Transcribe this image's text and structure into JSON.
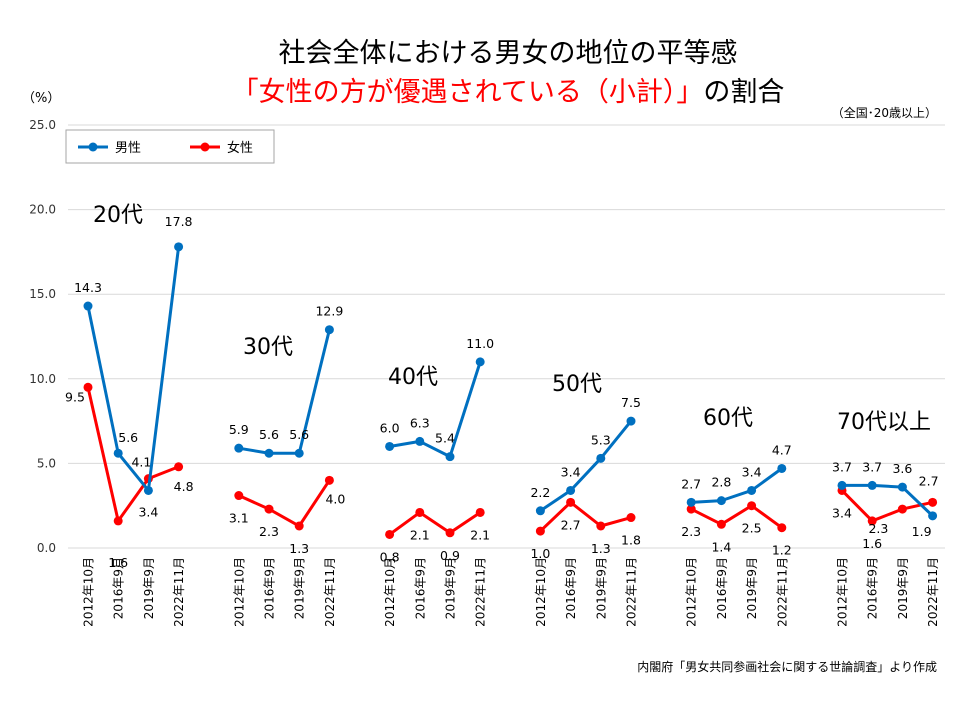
{
  "title": {
    "line1": "社会全体における男女の地位の平等感",
    "line2_highlight": "「女性の方が優遇されている（小計）」",
    "line2_rest": "の割合"
  },
  "note_scope": "（全国･20歳以上）",
  "source": "内閣府「男女共同参画社会に関する世論調査」より作成",
  "colors": {
    "male": "#0070C0",
    "female": "#FF0000",
    "title_highlight": "#FF0000"
  },
  "chart_data": {
    "type": "line",
    "y_unit": "（%）",
    "ylim": [
      0,
      25
    ],
    "y_ticks": [
      0,
      5,
      10,
      15,
      20,
      25
    ],
    "grid": true,
    "legend_position": "top-left",
    "categories": [
      "2012年10月",
      "2016年9月",
      "2019年9月",
      "2022年11月"
    ],
    "series_styles": [
      {
        "name": "男性",
        "color": "#0070C0"
      },
      {
        "name": "女性",
        "color": "#FF0000"
      }
    ],
    "groups": [
      {
        "label": "20代",
        "series": [
          {
            "name": "男性",
            "values": [
              14.3,
              5.6,
              3.4,
              17.8
            ]
          },
          {
            "name": "女性",
            "values": [
              9.5,
              1.6,
              4.1,
              4.8
            ]
          }
        ]
      },
      {
        "label": "30代",
        "series": [
          {
            "name": "男性",
            "values": [
              5.9,
              5.6,
              5.6,
              12.9
            ]
          },
          {
            "name": "女性",
            "values": [
              3.1,
              2.3,
              1.3,
              4.0
            ]
          }
        ]
      },
      {
        "label": "40代",
        "series": [
          {
            "name": "男性",
            "values": [
              6.0,
              6.3,
              5.4,
              11.0
            ]
          },
          {
            "name": "女性",
            "values": [
              0.8,
              2.1,
              0.9,
              2.1
            ]
          }
        ]
      },
      {
        "label": "50代",
        "series": [
          {
            "name": "男性",
            "values": [
              2.2,
              3.4,
              5.3,
              7.5
            ]
          },
          {
            "name": "女性",
            "values": [
              1.0,
              2.7,
              1.3,
              1.8
            ]
          }
        ]
      },
      {
        "label": "60代",
        "series": [
          {
            "name": "男性",
            "values": [
              2.7,
              2.8,
              3.4,
              4.7
            ]
          },
          {
            "name": "女性",
            "values": [
              2.3,
              1.4,
              2.5,
              1.2
            ]
          }
        ]
      },
      {
        "label": "70代以上",
        "series": [
          {
            "name": "男性",
            "values": [
              3.7,
              3.7,
              3.6,
              1.9
            ]
          },
          {
            "name": "女性",
            "values": [
              3.4,
              1.6,
              2.3,
              2.7
            ]
          }
        ]
      }
    ]
  }
}
